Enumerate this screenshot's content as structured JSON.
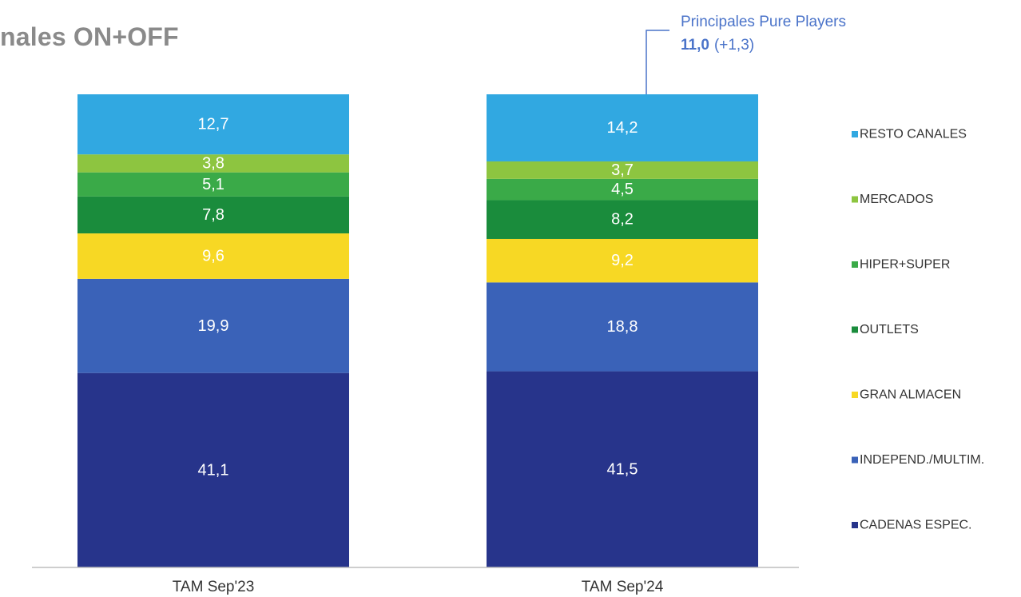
{
  "page": {
    "title": "nales ON+OFF"
  },
  "chart_data": {
    "type": "bar",
    "stacked": true,
    "title": "nales ON+OFF",
    "xlabel": "",
    "ylabel": "",
    "ylim": [
      0,
      100
    ],
    "categories": [
      "TAM Sep'23",
      "TAM Sep'24"
    ],
    "series": [
      {
        "name": "CADENAS ESPEC.",
        "values": [
          41.1,
          41.5
        ],
        "labels": [
          "41,1",
          "41,5"
        ],
        "color": "#27348b",
        "label_color": "#ffffff"
      },
      {
        "name": "INDEPEND./MULTIM.",
        "values": [
          19.9,
          18.8
        ],
        "labels": [
          "19,9",
          "18,8"
        ],
        "color": "#3a62b8",
        "label_color": "#ffffff"
      },
      {
        "name": "GRAN ALMACEN",
        "values": [
          9.6,
          9.2
        ],
        "labels": [
          "9,6",
          "9,2"
        ],
        "color": "#f7d824",
        "label_color": "#ffffff"
      },
      {
        "name": "OUTLETS",
        "values": [
          7.8,
          8.2
        ],
        "labels": [
          "7,8",
          "8,2"
        ],
        "color": "#1a8c3c",
        "label_color": "#ffffff"
      },
      {
        "name": "HIPER+SUPER",
        "values": [
          5.1,
          4.5
        ],
        "labels": [
          "5,1",
          "4,5"
        ],
        "color": "#3aaa48",
        "label_color": "#ffffff"
      },
      {
        "name": "MERCADOS",
        "values": [
          3.8,
          3.7
        ],
        "labels": [
          "3,8",
          "3,7"
        ],
        "color": "#8dc540",
        "label_color": "#ffffff"
      },
      {
        "name": "RESTO CANALES",
        "values": [
          12.7,
          14.2
        ],
        "labels": [
          "12,7",
          "14,2"
        ],
        "color": "#31a8e1",
        "label_color": "#ffffff"
      }
    ],
    "legend_order": [
      "RESTO CANALES",
      "MERCADOS",
      "HIPER+SUPER",
      "OUTLETS",
      "GRAN ALMACEN",
      "INDEPEND./MULTIM.",
      "CADENAS ESPEC."
    ],
    "legend_position": "right",
    "grid": false,
    "annotation": {
      "title": "Principales Pure Players",
      "value": "11,0",
      "delta": "(+1,3)",
      "category": "TAM Sep'24",
      "series": "RESTO CANALES",
      "color": "#4a73c9"
    }
  }
}
